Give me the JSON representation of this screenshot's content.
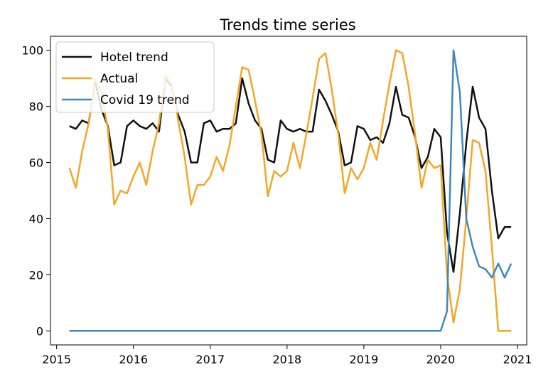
{
  "chart_data": {
    "type": "line",
    "title": "Trends time series",
    "xlabel": "",
    "ylabel": "",
    "xlim": [
      2014.92,
      2021.12
    ],
    "ylim": [
      -5,
      105
    ],
    "x_ticks": [
      "2015",
      "2016",
      "2017",
      "2018",
      "2019",
      "2020",
      "2021"
    ],
    "y_ticks": [
      "0",
      "20",
      "40",
      "60",
      "80",
      "100"
    ],
    "legend": "top-left",
    "grid": false,
    "series": [
      {
        "name": "Hotel trend",
        "color": "#111111",
        "x": [
          2015.167,
          2015.25,
          2015.333,
          2015.417,
          2015.5,
          2015.583,
          2015.667,
          2015.75,
          2015.833,
          2015.917,
          2016.0,
          2016.083,
          2016.167,
          2016.25,
          2016.333,
          2016.417,
          2016.5,
          2016.583,
          2016.667,
          2016.75,
          2016.833,
          2016.917,
          2017.0,
          2017.083,
          2017.167,
          2017.25,
          2017.333,
          2017.417,
          2017.5,
          2017.583,
          2017.667,
          2017.75,
          2017.833,
          2017.917,
          2018.0,
          2018.083,
          2018.167,
          2018.25,
          2018.333,
          2018.417,
          2018.5,
          2018.583,
          2018.667,
          2018.75,
          2018.833,
          2018.917,
          2019.0,
          2019.083,
          2019.167,
          2019.25,
          2019.333,
          2019.417,
          2019.5,
          2019.583,
          2019.667,
          2019.75,
          2019.833,
          2019.917,
          2020.0,
          2020.083,
          2020.167,
          2020.25,
          2020.333,
          2020.417,
          2020.5,
          2020.583,
          2020.667,
          2020.75,
          2020.833,
          2020.917
        ],
        "values": [
          73,
          72,
          75,
          74,
          89,
          79,
          73,
          59,
          60,
          73,
          75,
          73,
          72,
          74,
          71,
          90,
          87,
          77,
          71,
          60,
          60,
          74,
          75,
          71,
          72,
          72,
          74,
          90,
          81,
          75,
          72,
          61,
          60,
          75,
          72,
          71,
          72,
          71,
          71,
          86,
          82,
          77,
          71,
          59,
          60,
          73,
          72,
          68,
          69,
          67,
          74,
          87,
          77,
          76,
          69,
          58,
          62,
          72,
          69,
          35,
          21,
          42,
          67,
          87,
          76,
          72,
          50,
          33,
          37,
          37
        ]
      },
      {
        "name": "Actual",
        "color": "#f5a623",
        "x": [
          2015.167,
          2015.25,
          2015.333,
          2015.417,
          2015.5,
          2015.583,
          2015.667,
          2015.75,
          2015.833,
          2015.917,
          2016.0,
          2016.083,
          2016.167,
          2016.25,
          2016.333,
          2016.417,
          2016.5,
          2016.583,
          2016.667,
          2016.75,
          2016.833,
          2016.917,
          2017.0,
          2017.083,
          2017.167,
          2017.25,
          2017.333,
          2017.417,
          2017.5,
          2017.583,
          2017.667,
          2017.75,
          2017.833,
          2017.917,
          2018.0,
          2018.083,
          2018.167,
          2018.25,
          2018.333,
          2018.417,
          2018.5,
          2018.583,
          2018.667,
          2018.75,
          2018.833,
          2018.917,
          2019.0,
          2019.083,
          2019.167,
          2019.25,
          2019.333,
          2019.417,
          2019.5,
          2019.583,
          2019.667,
          2019.75,
          2019.833,
          2019.917,
          2020.0,
          2020.083,
          2020.167,
          2020.25,
          2020.333,
          2020.417,
          2020.5,
          2020.583,
          2020.667,
          2020.75,
          2020.833,
          2020.917
        ],
        "values": [
          58,
          51,
          64,
          74,
          90,
          85,
          72,
          45,
          50,
          49,
          55,
          60,
          52,
          64,
          74,
          91,
          88,
          75,
          62,
          45,
          52,
          52,
          55,
          62,
          57,
          66,
          80,
          94,
          93,
          82,
          70,
          48,
          57,
          55,
          57,
          67,
          58,
          70,
          83,
          97,
          99,
          86,
          70,
          49,
          58,
          54,
          58,
          67,
          61,
          75,
          88,
          100,
          99,
          87,
          70,
          51,
          61,
          58,
          59,
          20,
          3,
          15,
          40,
          68,
          67,
          57,
          30,
          0,
          0,
          0
        ]
      },
      {
        "name": "Covid 19 trend",
        "color": "#3f87be",
        "x": [
          2015.167,
          2015.5,
          2016.0,
          2016.5,
          2017.0,
          2017.5,
          2018.0,
          2018.5,
          2019.0,
          2019.5,
          2020.0,
          2020.083,
          2020.167,
          2020.25,
          2020.333,
          2020.417,
          2020.5,
          2020.583,
          2020.667,
          2020.75,
          2020.833,
          2020.917
        ],
        "values": [
          0,
          0,
          0,
          0,
          0,
          0,
          0,
          0,
          0,
          0,
          0,
          7,
          100,
          85,
          40,
          30,
          23,
          22,
          19,
          24,
          19,
          24
        ]
      }
    ]
  }
}
